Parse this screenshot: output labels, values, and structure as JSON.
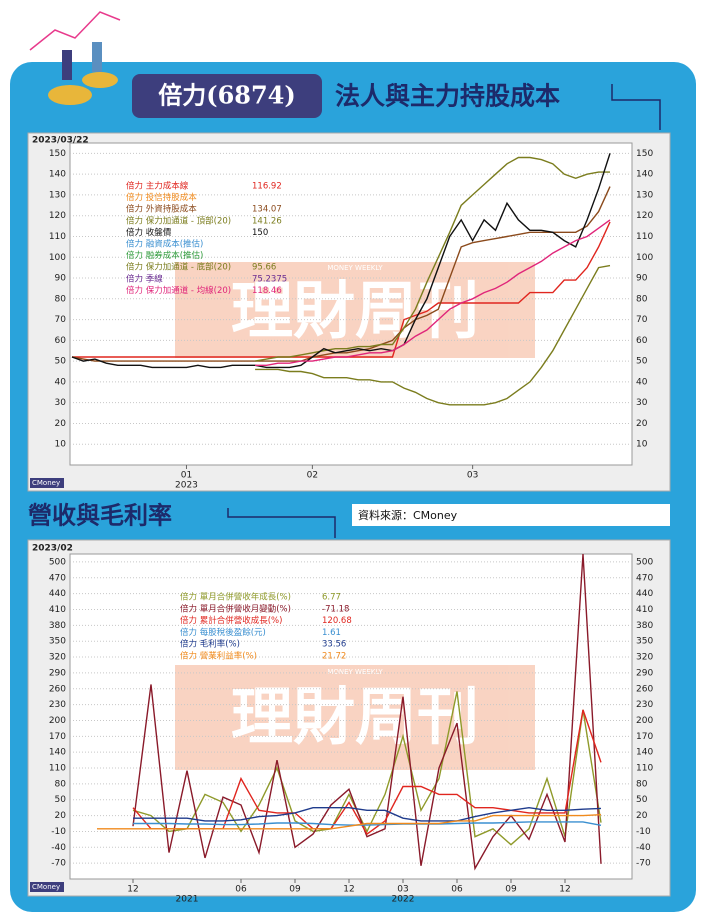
{
  "header": {
    "company": "倍力(6874)",
    "title": "法人與主力持股成本",
    "section": "營收與毛利率",
    "source": "資料來源：CMoney",
    "watermark": "理財周刊",
    "watermark_en": "MONEY WEEKLY",
    "logo": "CMoney"
  },
  "chart_data": [
    {
      "type": "line",
      "date_label": "2023/03/22",
      "categories": [
        null,
        null,
        null,
        null,
        null,
        null,
        null,
        null,
        null,
        null,
        "01",
        null,
        null,
        null,
        null,
        null,
        null,
        null,
        null,
        null,
        null,
        "02",
        null,
        null,
        null,
        null,
        null,
        null,
        null,
        null,
        null,
        null,
        null,
        null,
        null,
        "03",
        null,
        null,
        null,
        null,
        null,
        null,
        null,
        null,
        null,
        null,
        null,
        null
      ],
      "annotations": [
        {
          "text": "2023",
          "category": 10
        }
      ],
      "ylim": [
        0,
        155
      ],
      "yticks": [
        10,
        20,
        30,
        40,
        50,
        60,
        70,
        80,
        90,
        100,
        110,
        120,
        130,
        140,
        150
      ],
      "grid": true,
      "series": [
        {
          "name": "倍力 主力成本線",
          "color": "#e0261f",
          "legend_value": 116.92,
          "values": [
            52,
            52,
            52,
            52,
            52,
            52,
            52,
            52,
            52,
            52,
            52,
            52,
            52,
            52,
            52,
            52,
            52,
            52,
            52,
            52,
            52,
            52,
            52,
            52,
            52,
            52,
            52,
            52,
            52,
            70,
            72,
            74,
            78,
            78,
            78,
            78,
            78,
            78,
            78,
            78,
            83,
            83,
            83,
            89,
            89,
            95,
            105,
            117
          ]
        },
        {
          "name": "倍力 投信持股成本",
          "color": "#f08a1c",
          "values": [
            null,
            null,
            null,
            null,
            null,
            null,
            null,
            null,
            null,
            null,
            null,
            null,
            null,
            null,
            null,
            null,
            null,
            null,
            null,
            null,
            null,
            null,
            null,
            null,
            null,
            null,
            null,
            null,
            null,
            null,
            null,
            null,
            null,
            null,
            null,
            null,
            null,
            null,
            null,
            null,
            null,
            null,
            null,
            null,
            null,
            null,
            null,
            null
          ]
        },
        {
          "name": "倍力 外資持股成本",
          "color": "#8b4a1c",
          "legend_value": 134.07,
          "values": [
            52,
            51,
            50,
            50,
            50,
            50,
            50,
            50,
            50,
            50,
            50,
            50,
            50,
            50,
            50,
            50,
            50,
            50,
            50,
            50,
            50,
            52,
            53,
            54,
            54,
            55,
            56,
            58,
            60,
            66,
            70,
            72,
            75,
            90,
            105,
            107,
            108,
            109,
            110,
            111,
            112,
            112,
            112,
            112,
            112,
            115,
            122,
            134
          ]
        },
        {
          "name": "倍力 保力加通道 - 頂部(20)",
          "color": "#7b7d1e",
          "legend_value": 141.26,
          "values": [
            null,
            null,
            null,
            null,
            null,
            null,
            null,
            null,
            null,
            null,
            null,
            null,
            null,
            null,
            null,
            null,
            50,
            51,
            52,
            52,
            53,
            54,
            55,
            56,
            56,
            57,
            57,
            58,
            58,
            66,
            75,
            88,
            100,
            112,
            125,
            130,
            135,
            140,
            145,
            148,
            148,
            147,
            145,
            140,
            138,
            140,
            141,
            141
          ]
        },
        {
          "name": "倍力 收盤價",
          "color": "#111111",
          "legend_value": 150,
          "values": [
            52,
            50,
            51,
            49,
            48,
            48,
            48,
            47,
            47,
            47,
            47,
            48,
            47,
            47,
            48,
            48,
            48,
            47,
            47,
            47,
            48,
            52,
            56,
            54,
            55,
            56,
            55,
            56,
            55,
            58,
            70,
            80,
            95,
            110,
            118,
            108,
            118,
            113,
            126,
            118,
            113,
            113,
            112,
            108,
            105,
            118,
            133,
            150
          ]
        },
        {
          "name": "倍力 融資成本(推估)",
          "color": "#3a8fd0",
          "values": [
            null,
            null,
            null,
            null,
            null,
            null,
            null,
            null,
            null,
            null,
            null,
            null,
            null,
            null,
            null,
            null,
            null,
            null,
            null,
            null,
            null,
            null,
            null,
            null,
            null,
            null,
            null,
            null,
            null,
            null,
            null,
            null,
            null,
            null,
            null,
            null,
            null,
            null,
            null,
            null,
            null,
            null,
            null,
            null,
            null,
            null,
            null,
            null
          ]
        },
        {
          "name": "倍力 融券成本(推估)",
          "color": "#2e9a3a",
          "values": [
            null,
            null,
            null,
            null,
            null,
            null,
            null,
            null,
            null,
            null,
            null,
            null,
            null,
            null,
            null,
            null,
            null,
            null,
            null,
            null,
            null,
            null,
            null,
            null,
            null,
            null,
            null,
            null,
            null,
            null,
            null,
            null,
            null,
            null,
            null,
            null,
            null,
            null,
            null,
            null,
            null,
            null,
            null,
            null,
            null,
            null,
            null,
            null
          ]
        },
        {
          "name": "倍力 保力加通道 - 底部(20)",
          "color": "#7b7d1e",
          "legend_value": 95.66,
          "values": [
            null,
            null,
            null,
            null,
            null,
            null,
            null,
            null,
            null,
            null,
            null,
            null,
            null,
            null,
            null,
            null,
            46,
            46,
            46,
            45,
            45,
            44,
            42,
            42,
            42,
            41,
            41,
            40,
            40,
            37,
            35,
            32,
            30,
            29,
            29,
            29,
            29,
            30,
            32,
            36,
            40,
            47,
            55,
            65,
            75,
            85,
            95,
            96
          ]
        },
        {
          "name": "倍力 季線",
          "color": "#6a2c91",
          "legend_value": 75.2375,
          "values": [
            null,
            null,
            null,
            null,
            null,
            null,
            null,
            null,
            null,
            null,
            null,
            null,
            null,
            null,
            null,
            null,
            null,
            null,
            null,
            null,
            null,
            null,
            null,
            null,
            null,
            null,
            null,
            null,
            null,
            null,
            null,
            null,
            null,
            null,
            null,
            null,
            null,
            null,
            null,
            null,
            null,
            null,
            null,
            null,
            null,
            null,
            null,
            null
          ]
        },
        {
          "name": "倍力 保力加通道 - 均線(20)",
          "color": "#e0267a",
          "legend_value": 118.46,
          "values": [
            null,
            null,
            null,
            null,
            null,
            null,
            null,
            null,
            null,
            null,
            null,
            null,
            null,
            null,
            null,
            null,
            48,
            48,
            49,
            49,
            50,
            50,
            51,
            52,
            52,
            53,
            54,
            54,
            55,
            58,
            62,
            65,
            70,
            75,
            78,
            80,
            83,
            85,
            88,
            92,
            95,
            98,
            102,
            105,
            108,
            110,
            114,
            118
          ]
        }
      ]
    },
    {
      "type": "line",
      "date_label": "2023/02",
      "categories": [
        null,
        null,
        "12",
        null,
        null,
        null,
        null,
        null,
        "06",
        null,
        null,
        "09",
        null,
        null,
        "12",
        null,
        null,
        "03",
        null,
        null,
        "06",
        null,
        null,
        "09",
        null,
        null,
        "12",
        null,
        null
      ],
      "annotations": [
        {
          "text": "2021",
          "category": 5
        },
        {
          "text": "2022",
          "category": 17
        }
      ],
      "ylim": [
        -100,
        515
      ],
      "yticks": [
        -70,
        -40,
        -10,
        20,
        50,
        80,
        110,
        140,
        170,
        200,
        230,
        260,
        290,
        320,
        350,
        380,
        410,
        440,
        470,
        500
      ],
      "grid": true,
      "series": [
        {
          "name": "倍力 單月合併營收年成長(%)",
          "color": "#8f9a2a",
          "legend_value": 6.77,
          "values": [
            null,
            null,
            30,
            20,
            -10,
            -5,
            60,
            45,
            -10,
            40,
            110,
            10,
            -10,
            -5,
            60,
            -10,
            60,
            170,
            30,
            90,
            255,
            -20,
            -5,
            -35,
            -5,
            90,
            -20,
            220,
            6.77
          ]
        },
        {
          "name": "倍力 單月合併營收月變動(%)",
          "color": "#8a1a2a",
          "legend_value": -71.18,
          "values": [
            null,
            null,
            0,
            268,
            -50,
            105,
            -60,
            55,
            40,
            -50,
            125,
            -40,
            -15,
            40,
            70,
            -20,
            -5,
            245,
            -75,
            110,
            195,
            -80,
            -20,
            20,
            -25,
            60,
            -30,
            515,
            -71.18
          ]
        },
        {
          "name": "倍力 累計合併營收成長(%)",
          "color": "#e0261f",
          "legend_value": 120.68,
          "values": [
            null,
            null,
            35,
            -5,
            -5,
            -5,
            -5,
            -5,
            90,
            30,
            25,
            25,
            -5,
            -5,
            45,
            -15,
            10,
            75,
            75,
            60,
            60,
            35,
            35,
            30,
            25,
            25,
            25,
            220,
            120.68
          ]
        },
        {
          "name": "倍力 每股稅後盈餘(元)",
          "color": "#3a8fd0",
          "legend_value": 1.61,
          "values": [
            null,
            null,
            5,
            5,
            5,
            4,
            4,
            3,
            3,
            4,
            6,
            6,
            5,
            3,
            2,
            2,
            3,
            4,
            4,
            4,
            5,
            6,
            6,
            7,
            8,
            8,
            8,
            8,
            1.61
          ]
        },
        {
          "name": "倍力 毛利率(%)",
          "color": "#1f3b8c",
          "legend_value": 33.56,
          "values": [
            null,
            null,
            15,
            15,
            15,
            15,
            10,
            10,
            12,
            18,
            20,
            25,
            35,
            35,
            35,
            30,
            30,
            15,
            10,
            10,
            10,
            18,
            25,
            30,
            35,
            30,
            30,
            32,
            33.56
          ]
        },
        {
          "name": "倍力 營業利益率(%)",
          "color": "#f08a1c",
          "legend_value": 21.72,
          "values": [
            -5,
            -5,
            -5,
            -5,
            -5,
            -5,
            -5,
            -5,
            -5,
            -5,
            -5,
            -5,
            -5,
            -5,
            0,
            5,
            5,
            5,
            5,
            5,
            10,
            10,
            20,
            20,
            20,
            20,
            20,
            20,
            21.72
          ]
        }
      ]
    }
  ]
}
